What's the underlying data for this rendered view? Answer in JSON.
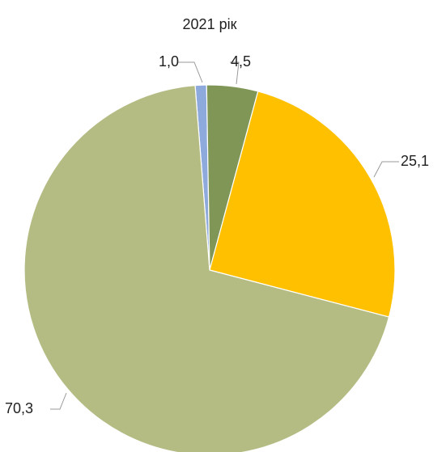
{
  "chart_data": {
    "type": "pie",
    "title": "2021 рік",
    "slices": [
      {
        "label": "1,0",
        "value": 1.0,
        "color": "#8EA9DB"
      },
      {
        "label": "4,5",
        "value": 4.5,
        "color": "#7F9656"
      },
      {
        "label": "25,1",
        "value": 25.1,
        "color": "#FFC000"
      },
      {
        "label": "70,3",
        "value": 70.3,
        "color": "#B4BC84"
      }
    ],
    "start_angle_deg": -4.5,
    "direction": "clockwise",
    "legend": "none"
  }
}
